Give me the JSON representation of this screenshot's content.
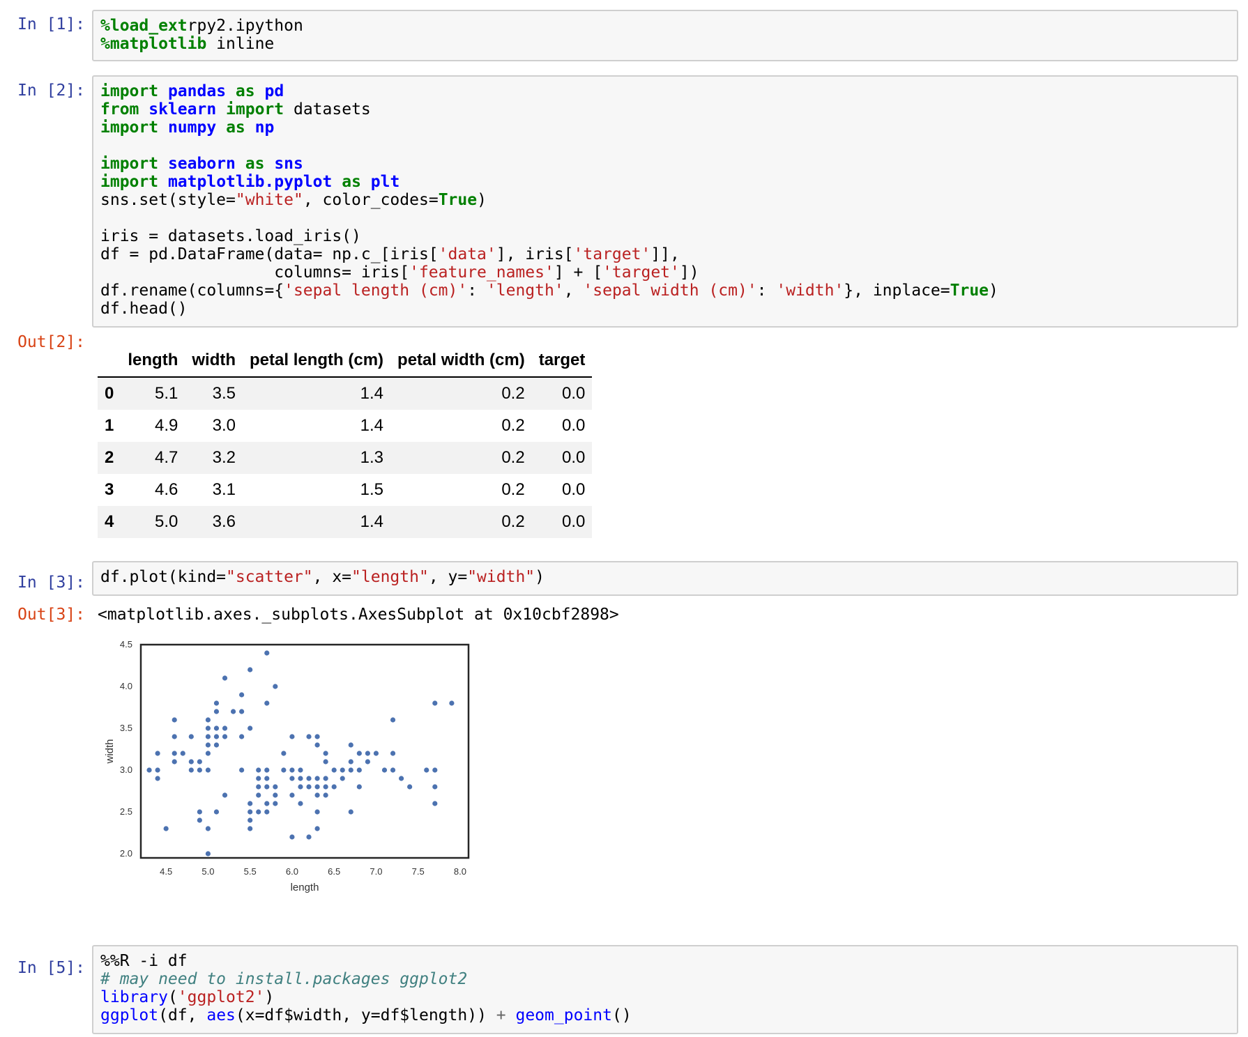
{
  "cells": [
    {
      "in_prompt": "In [1]:",
      "lines": [
        [
          [
            "mg",
            "%load_ext"
          ],
          [
            "",
            "rpy2.ipython"
          ]
        ],
        [
          [
            "mg",
            "%matplotlib"
          ],
          [
            "",
            " inline"
          ]
        ]
      ]
    },
    {
      "in_prompt": "In [2]:",
      "lines": [
        [
          [
            "kw",
            "import"
          ],
          [
            "",
            " "
          ],
          [
            "mod",
            "pandas"
          ],
          [
            "",
            " "
          ],
          [
            "kw",
            "as"
          ],
          [
            "",
            " "
          ],
          [
            "mod",
            "pd"
          ]
        ],
        [
          [
            "kw",
            "from"
          ],
          [
            "",
            " "
          ],
          [
            "mod",
            "sklearn"
          ],
          [
            "",
            " "
          ],
          [
            "kw",
            "import"
          ],
          [
            "",
            " datasets"
          ]
        ],
        [
          [
            "kw",
            "import"
          ],
          [
            "",
            " "
          ],
          [
            "mod",
            "numpy"
          ],
          [
            "",
            " "
          ],
          [
            "kw",
            "as"
          ],
          [
            "",
            " "
          ],
          [
            "mod",
            "np"
          ]
        ],
        [],
        [
          [
            "kw",
            "import"
          ],
          [
            "",
            " "
          ],
          [
            "mod",
            "seaborn"
          ],
          [
            "",
            " "
          ],
          [
            "kw",
            "as"
          ],
          [
            "",
            " "
          ],
          [
            "mod",
            "sns"
          ]
        ],
        [
          [
            "kw",
            "import"
          ],
          [
            "",
            " "
          ],
          [
            "mod",
            "matplotlib.pyplot"
          ],
          [
            "",
            " "
          ],
          [
            "kw",
            "as"
          ],
          [
            "",
            " "
          ],
          [
            "mod",
            "plt"
          ]
        ],
        [
          [
            "",
            "sns.set(style="
          ],
          [
            "str",
            "\"white\""
          ],
          [
            "",
            ", color_codes="
          ],
          [
            "kw",
            "True"
          ],
          [
            "",
            ")"
          ]
        ],
        [],
        [
          [
            "",
            "iris = datasets.load_iris()"
          ]
        ],
        [
          [
            "",
            "df = pd.DataFrame(data= np.c_[iris["
          ],
          [
            "str",
            "'data'"
          ],
          [
            "",
            "], iris["
          ],
          [
            "str",
            "'target'"
          ],
          [
            "",
            "]],"
          ]
        ],
        [
          [
            "",
            "                  columns= iris["
          ],
          [
            "str",
            "'feature_names'"
          ],
          [
            "",
            "] + ["
          ],
          [
            "str",
            "'target'"
          ],
          [
            "",
            "])"
          ]
        ],
        [
          [
            "",
            "df.rename(columns={"
          ],
          [
            "str",
            "'sepal length (cm)'"
          ],
          [
            "",
            ": "
          ],
          [
            "str",
            "'length'"
          ],
          [
            "",
            ", "
          ],
          [
            "str",
            "'sepal width (cm)'"
          ],
          [
            "",
            ": "
          ],
          [
            "str",
            "'width'"
          ],
          [
            "",
            "}, inplace="
          ],
          [
            "kw",
            "True"
          ],
          [
            "",
            ")"
          ]
        ],
        [
          [
            "",
            "df.head()"
          ]
        ]
      ],
      "out_prompt": "Out[2]:"
    },
    {
      "in_prompt": "In [3]:",
      "lines": [
        [
          [
            "",
            "df.plot(kind="
          ],
          [
            "str",
            "\"scatter\""
          ],
          [
            "",
            ", x="
          ],
          [
            "str",
            "\"length\""
          ],
          [
            "",
            ", y="
          ],
          [
            "str",
            "\"width\""
          ],
          [
            "",
            ")"
          ]
        ]
      ],
      "out_prompt": "Out[3]:",
      "out_text": "<matplotlib.axes._subplots.AxesSubplot at 0x10cbf2898>"
    },
    {
      "in_prompt": "In [5]:",
      "lines": [
        [
          [
            "",
            "%%R -i df"
          ]
        ],
        [
          [
            "cm",
            "# may need to install.packages ggplot2"
          ]
        ],
        [
          [
            "fn",
            "library"
          ],
          [
            "",
            "("
          ],
          [
            "str",
            "'ggplot2'"
          ],
          [
            "",
            ")"
          ]
        ],
        [
          [
            "fn",
            "ggplot"
          ],
          [
            "",
            "(df, "
          ],
          [
            "fn",
            "aes"
          ],
          [
            "",
            "(x=df$width, y=df$length)) "
          ],
          [
            "op",
            "+"
          ],
          [
            "",
            " "
          ],
          [
            "fn",
            "geom_point"
          ],
          [
            "",
            "()"
          ]
        ]
      ]
    }
  ],
  "dataframe": {
    "columns": [
      "length",
      "width",
      "petal length (cm)",
      "petal width (cm)",
      "target"
    ],
    "rows": [
      {
        "index": "0",
        "values": [
          "5.1",
          "3.5",
          "1.4",
          "0.2",
          "0.0"
        ]
      },
      {
        "index": "1",
        "values": [
          "4.9",
          "3.0",
          "1.4",
          "0.2",
          "0.0"
        ]
      },
      {
        "index": "2",
        "values": [
          "4.7",
          "3.2",
          "1.3",
          "0.2",
          "0.0"
        ]
      },
      {
        "index": "3",
        "values": [
          "4.6",
          "3.1",
          "1.5",
          "0.2",
          "0.0"
        ]
      },
      {
        "index": "4",
        "values": [
          "5.0",
          "3.6",
          "1.4",
          "0.2",
          "0.0"
        ]
      }
    ]
  },
  "chart_data": {
    "type": "scatter",
    "xlabel": "length",
    "ylabel": "width",
    "xlim": [
      4.2,
      8.1
    ],
    "ylim": [
      1.95,
      4.5
    ],
    "xticks": [
      "4.5",
      "5.0",
      "5.5",
      "6.0",
      "6.5",
      "7.0",
      "7.5",
      "8.0"
    ],
    "yticks": [
      "2.0",
      "2.5",
      "3.0",
      "3.5",
      "4.0",
      "4.5"
    ],
    "point_color": "#4c72b0",
    "points": [
      [
        4.3,
        3.0
      ],
      [
        4.4,
        3.2
      ],
      [
        4.4,
        3.0
      ],
      [
        4.4,
        2.9
      ],
      [
        4.5,
        2.3
      ],
      [
        4.6,
        3.6
      ],
      [
        4.6,
        3.4
      ],
      [
        4.6,
        3.2
      ],
      [
        4.6,
        3.1
      ],
      [
        4.7,
        3.2
      ],
      [
        4.8,
        3.4
      ],
      [
        4.8,
        3.1
      ],
      [
        4.8,
        3.0
      ],
      [
        4.9,
        3.1
      ],
      [
        4.9,
        3.0
      ],
      [
        4.9,
        2.5
      ],
      [
        4.9,
        2.4
      ],
      [
        5.0,
        3.6
      ],
      [
        5.0,
        3.5
      ],
      [
        5.0,
        3.4
      ],
      [
        5.0,
        3.3
      ],
      [
        5.0,
        3.2
      ],
      [
        5.0,
        3.0
      ],
      [
        5.0,
        2.3
      ],
      [
        5.0,
        2.0
      ],
      [
        5.1,
        3.8
      ],
      [
        5.1,
        3.7
      ],
      [
        5.1,
        3.5
      ],
      [
        5.1,
        3.4
      ],
      [
        5.1,
        3.3
      ],
      [
        5.1,
        2.5
      ],
      [
        5.2,
        4.1
      ],
      [
        5.2,
        3.5
      ],
      [
        5.2,
        3.4
      ],
      [
        5.2,
        2.7
      ],
      [
        5.3,
        3.7
      ],
      [
        5.4,
        3.9
      ],
      [
        5.4,
        3.7
      ],
      [
        5.4,
        3.4
      ],
      [
        5.4,
        3.0
      ],
      [
        5.5,
        4.2
      ],
      [
        5.5,
        3.5
      ],
      [
        5.5,
        2.6
      ],
      [
        5.5,
        2.5
      ],
      [
        5.5,
        2.4
      ],
      [
        5.5,
        2.3
      ],
      [
        5.6,
        3.0
      ],
      [
        5.6,
        2.9
      ],
      [
        5.6,
        2.8
      ],
      [
        5.6,
        2.7
      ],
      [
        5.6,
        2.5
      ],
      [
        5.7,
        4.4
      ],
      [
        5.7,
        3.8
      ],
      [
        5.7,
        3.0
      ],
      [
        5.7,
        2.9
      ],
      [
        5.7,
        2.8
      ],
      [
        5.7,
        2.6
      ],
      [
        5.7,
        2.5
      ],
      [
        5.8,
        4.0
      ],
      [
        5.8,
        2.8
      ],
      [
        5.8,
        2.7
      ],
      [
        5.8,
        2.6
      ],
      [
        5.9,
        3.2
      ],
      [
        5.9,
        3.0
      ],
      [
        6.0,
        3.4
      ],
      [
        6.0,
        3.0
      ],
      [
        6.0,
        2.9
      ],
      [
        6.0,
        2.7
      ],
      [
        6.0,
        2.2
      ],
      [
        6.1,
        3.0
      ],
      [
        6.1,
        2.9
      ],
      [
        6.1,
        2.8
      ],
      [
        6.1,
        2.6
      ],
      [
        6.2,
        3.4
      ],
      [
        6.2,
        2.9
      ],
      [
        6.2,
        2.8
      ],
      [
        6.2,
        2.2
      ],
      [
        6.3,
        3.4
      ],
      [
        6.3,
        3.3
      ],
      [
        6.3,
        2.9
      ],
      [
        6.3,
        2.8
      ],
      [
        6.3,
        2.7
      ],
      [
        6.3,
        2.5
      ],
      [
        6.3,
        2.3
      ],
      [
        6.4,
        3.2
      ],
      [
        6.4,
        3.1
      ],
      [
        6.4,
        2.9
      ],
      [
        6.4,
        2.8
      ],
      [
        6.4,
        2.7
      ],
      [
        6.5,
        3.0
      ],
      [
        6.5,
        2.8
      ],
      [
        6.6,
        3.0
      ],
      [
        6.6,
        2.9
      ],
      [
        6.7,
        3.3
      ],
      [
        6.7,
        3.1
      ],
      [
        6.7,
        3.0
      ],
      [
        6.7,
        2.5
      ],
      [
        6.8,
        3.2
      ],
      [
        6.8,
        3.0
      ],
      [
        6.8,
        2.8
      ],
      [
        6.9,
        3.2
      ],
      [
        6.9,
        3.1
      ],
      [
        7.0,
        3.2
      ],
      [
        7.1,
        3.0
      ],
      [
        7.2,
        3.6
      ],
      [
        7.2,
        3.2
      ],
      [
        7.2,
        3.0
      ],
      [
        7.3,
        2.9
      ],
      [
        7.4,
        2.8
      ],
      [
        7.6,
        3.0
      ],
      [
        7.7,
        3.8
      ],
      [
        7.7,
        3.0
      ],
      [
        7.7,
        2.8
      ],
      [
        7.7,
        2.6
      ],
      [
        7.9,
        3.8
      ]
    ]
  }
}
